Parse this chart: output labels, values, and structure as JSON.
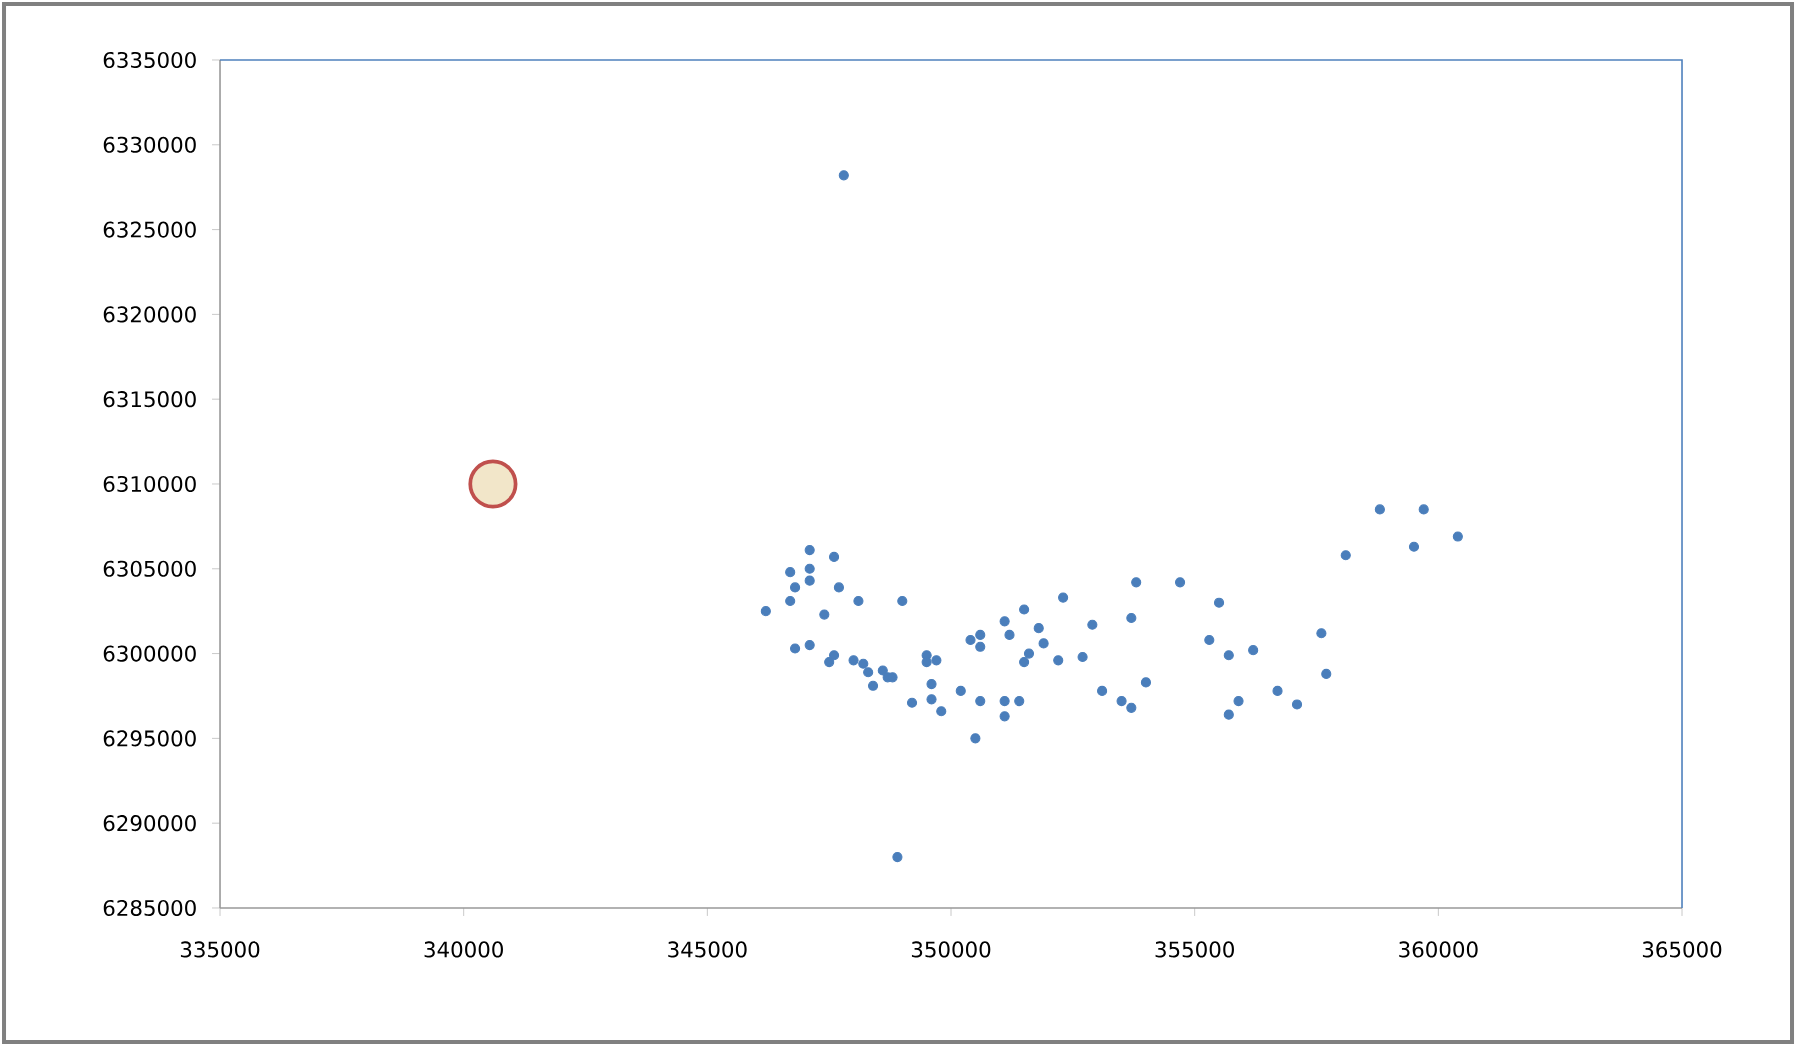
{
  "chart_data": {
    "type": "scatter",
    "xlim": [
      335000,
      365000
    ],
    "ylim": [
      6285000,
      6335000
    ],
    "xticks": [
      335000,
      340000,
      345000,
      350000,
      355000,
      360000,
      365000
    ],
    "yticks": [
      6285000,
      6290000,
      6295000,
      6300000,
      6305000,
      6310000,
      6315000,
      6320000,
      6325000,
      6330000,
      6335000
    ],
    "grid": false,
    "legend": false,
    "series": [
      {
        "color": "#4a7ebb",
        "x": [
          347800,
          348900,
          347100,
          347600,
          346700,
          347100,
          347100,
          346800,
          347700,
          346200,
          346700,
          347400,
          348100,
          349000,
          346800,
          347100,
          347600,
          347500,
          348000,
          348200,
          348300,
          348600,
          348700,
          348800,
          348400,
          349500,
          349700,
          349500,
          349600,
          349200,
          349600,
          349800,
          350200,
          350500,
          350400,
          350600,
          350600,
          350600,
          351100,
          351200,
          351500,
          351100,
          351400,
          351100,
          352300,
          351800,
          351900,
          351600,
          351500,
          352200,
          352700,
          352900,
          353100,
          358800,
          359700,
          359500,
          360400,
          358100,
          353800,
          354700,
          355500,
          353700,
          355300,
          355700,
          356200,
          357600,
          357700,
          354000,
          353500,
          353700,
          355900,
          355700,
          356700,
          357100
        ],
        "values": [
          6328200,
          6288000,
          6306100,
          6305700,
          6304800,
          6305000,
          6304300,
          6303900,
          6303900,
          6302500,
          6303100,
          6302300,
          6303100,
          6303100,
          6300300,
          6300500,
          6299900,
          6299500,
          6299600,
          6299400,
          6298900,
          6299000,
          6298600,
          6298600,
          6298100,
          6299900,
          6299600,
          6299500,
          6298200,
          6297100,
          6297300,
          6296600,
          6297800,
          6295000,
          6300800,
          6301100,
          6300400,
          6297200,
          6301900,
          6301100,
          6302600,
          6297200,
          6297200,
          6296300,
          6303300,
          6301500,
          6300600,
          6300000,
          6299500,
          6299600,
          6299800,
          6301700,
          6297800,
          6308500,
          6308500,
          6306300,
          6306900,
          6305800,
          6304200,
          6304200,
          6303000,
          6302100,
          6300800,
          6299900,
          6300200,
          6301200,
          6298800,
          6298300,
          6297200,
          6296800,
          6297200,
          6296400,
          6297800,
          6297000
        ]
      },
      {
        "color": "#f2e6c9",
        "x": [
          340600
        ],
        "values": [
          6310000
        ]
      }
    ]
  }
}
